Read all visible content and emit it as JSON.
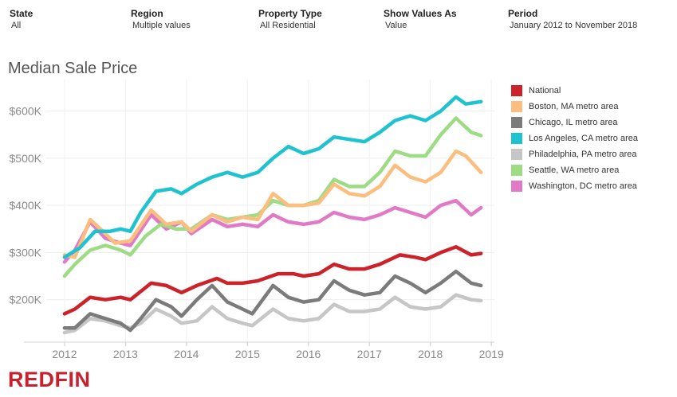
{
  "filters": [
    {
      "label": "State",
      "value": "All"
    },
    {
      "label": "Region",
      "value": "Multiple values"
    },
    {
      "label": "Property Type",
      "value": "All Residential"
    },
    {
      "label": "Show Values As",
      "value": "Value"
    },
    {
      "label": "Period",
      "value": "January 2012 to November 2018"
    }
  ],
  "logo": "REDFIN",
  "chart_data": {
    "type": "line",
    "title": "Median Sale Price",
    "xlabel": "",
    "ylabel": "",
    "x_ticks": [
      "2012",
      "2013",
      "2014",
      "2015",
      "2016",
      "2017",
      "2018",
      "2019"
    ],
    "y_ticks": [
      {
        "value": 200000,
        "label": "$200K"
      },
      {
        "value": 300000,
        "label": "$300K"
      },
      {
        "value": 400000,
        "label": "$400K"
      },
      {
        "value": 500000,
        "label": "$500K"
      },
      {
        "value": 600000,
        "label": "$600K"
      }
    ],
    "xlim": [
      2011.7,
      2019.05
    ],
    "ylim": [
      110000,
      650000
    ],
    "legend_position": "right",
    "series": [
      {
        "name": "National",
        "color": "#cc2229",
        "x": [
          2012.0,
          2012.17,
          2012.42,
          2012.67,
          2012.92,
          2013.08,
          2013.42,
          2013.67,
          2013.92,
          2014.17,
          2014.5,
          2014.67,
          2014.92,
          2015.17,
          2015.5,
          2015.75,
          2015.92,
          2016.17,
          2016.42,
          2016.67,
          2016.92,
          2017.17,
          2017.5,
          2017.75,
          2017.92,
          2018.17,
          2018.42,
          2018.67,
          2018.83
        ],
        "values": [
          170000,
          180000,
          205000,
          200000,
          205000,
          200000,
          235000,
          230000,
          215000,
          230000,
          245000,
          235000,
          235000,
          240000,
          255000,
          255000,
          250000,
          255000,
          275000,
          265000,
          265000,
          275000,
          295000,
          290000,
          285000,
          300000,
          312000,
          295000,
          298000
        ]
      },
      {
        "name": "Boston, MA metro area",
        "color": "#fbbe7e",
        "x": [
          2012.0,
          2012.17,
          2012.42,
          2012.67,
          2012.83,
          2013.08,
          2013.42,
          2013.67,
          2013.92,
          2014.08,
          2014.42,
          2014.67,
          2014.92,
          2015.17,
          2015.42,
          2015.67,
          2015.92,
          2016.17,
          2016.42,
          2016.67,
          2016.92,
          2017.17,
          2017.42,
          2017.67,
          2017.92,
          2018.17,
          2018.42,
          2018.58,
          2018.83
        ],
        "values": [
          295000,
          290000,
          370000,
          340000,
          320000,
          325000,
          390000,
          360000,
          365000,
          345000,
          380000,
          365000,
          375000,
          370000,
          425000,
          400000,
          400000,
          405000,
          445000,
          425000,
          420000,
          440000,
          485000,
          460000,
          450000,
          470000,
          515000,
          505000,
          470000
        ]
      },
      {
        "name": "Chicago, IL metro area",
        "color": "#7b7b7b",
        "x": [
          2012.0,
          2012.17,
          2012.42,
          2012.67,
          2012.92,
          2013.08,
          2013.25,
          2013.5,
          2013.75,
          2013.92,
          2014.17,
          2014.42,
          2014.67,
          2014.92,
          2015.08,
          2015.42,
          2015.67,
          2015.92,
          2016.17,
          2016.42,
          2016.67,
          2016.92,
          2017.17,
          2017.42,
          2017.67,
          2017.92,
          2018.17,
          2018.42,
          2018.67,
          2018.83
        ],
        "values": [
          140000,
          140000,
          170000,
          160000,
          150000,
          135000,
          160000,
          200000,
          185000,
          165000,
          200000,
          230000,
          195000,
          180000,
          170000,
          230000,
          205000,
          195000,
          200000,
          240000,
          220000,
          210000,
          215000,
          250000,
          235000,
          215000,
          235000,
          260000,
          235000,
          230000
        ]
      },
      {
        "name": "Los Angeles, CA metro area",
        "color": "#1fc2cf",
        "x": [
          2012.0,
          2012.25,
          2012.5,
          2012.75,
          2012.92,
          2013.08,
          2013.25,
          2013.5,
          2013.75,
          2013.92,
          2014.17,
          2014.42,
          2014.67,
          2014.92,
          2015.17,
          2015.42,
          2015.67,
          2015.92,
          2016.17,
          2016.42,
          2016.67,
          2016.92,
          2017.17,
          2017.42,
          2017.67,
          2017.92,
          2018.17,
          2018.42,
          2018.58,
          2018.83
        ],
        "values": [
          290000,
          310000,
          345000,
          345000,
          350000,
          345000,
          385000,
          430000,
          435000,
          425000,
          445000,
          460000,
          470000,
          460000,
          470000,
          500000,
          525000,
          510000,
          520000,
          545000,
          540000,
          535000,
          555000,
          580000,
          590000,
          580000,
          600000,
          630000,
          615000,
          620000
        ]
      },
      {
        "name": "Philadelphia, PA metro area",
        "color": "#c6c6c6",
        "x": [
          2012.0,
          2012.17,
          2012.42,
          2012.67,
          2012.92,
          2013.08,
          2013.25,
          2013.5,
          2013.75,
          2013.92,
          2014.17,
          2014.42,
          2014.67,
          2014.92,
          2015.08,
          2015.42,
          2015.67,
          2015.92,
          2016.17,
          2016.42,
          2016.67,
          2016.92,
          2017.17,
          2017.42,
          2017.67,
          2017.92,
          2018.17,
          2018.42,
          2018.67,
          2018.83
        ],
        "values": [
          130000,
          135000,
          160000,
          155000,
          145000,
          140000,
          150000,
          180000,
          165000,
          150000,
          155000,
          185000,
          160000,
          150000,
          145000,
          180000,
          160000,
          155000,
          160000,
          190000,
          175000,
          175000,
          180000,
          205000,
          185000,
          180000,
          185000,
          210000,
          200000,
          198000
        ]
      },
      {
        "name": "Seattle, WA metro area",
        "color": "#9edb85",
        "x": [
          2012.0,
          2012.17,
          2012.42,
          2012.67,
          2012.92,
          2013.08,
          2013.33,
          2013.58,
          2013.83,
          2014.08,
          2014.42,
          2014.67,
          2014.92,
          2015.17,
          2015.42,
          2015.67,
          2015.92,
          2016.17,
          2016.42,
          2016.67,
          2016.92,
          2017.17,
          2017.42,
          2017.67,
          2017.92,
          2018.17,
          2018.42,
          2018.67,
          2018.83
        ],
        "values": [
          250000,
          275000,
          305000,
          315000,
          305000,
          295000,
          335000,
          360000,
          350000,
          350000,
          380000,
          370000,
          375000,
          380000,
          410000,
          400000,
          400000,
          410000,
          455000,
          440000,
          440000,
          470000,
          515000,
          505000,
          505000,
          550000,
          585000,
          555000,
          548000
        ]
      },
      {
        "name": "Washington, DC metro area",
        "color": "#e17ac6",
        "x": [
          2012.0,
          2012.17,
          2012.42,
          2012.67,
          2012.92,
          2013.08,
          2013.42,
          2013.67,
          2013.92,
          2014.08,
          2014.42,
          2014.67,
          2014.92,
          2015.17,
          2015.42,
          2015.67,
          2015.92,
          2016.17,
          2016.42,
          2016.67,
          2016.92,
          2017.17,
          2017.42,
          2017.67,
          2017.92,
          2018.17,
          2018.42,
          2018.67,
          2018.83
        ],
        "values": [
          280000,
          305000,
          365000,
          330000,
          320000,
          315000,
          380000,
          350000,
          365000,
          340000,
          370000,
          355000,
          360000,
          355000,
          380000,
          365000,
          360000,
          365000,
          385000,
          375000,
          370000,
          380000,
          395000,
          385000,
          375000,
          400000,
          410000,
          380000,
          395000
        ]
      }
    ]
  }
}
